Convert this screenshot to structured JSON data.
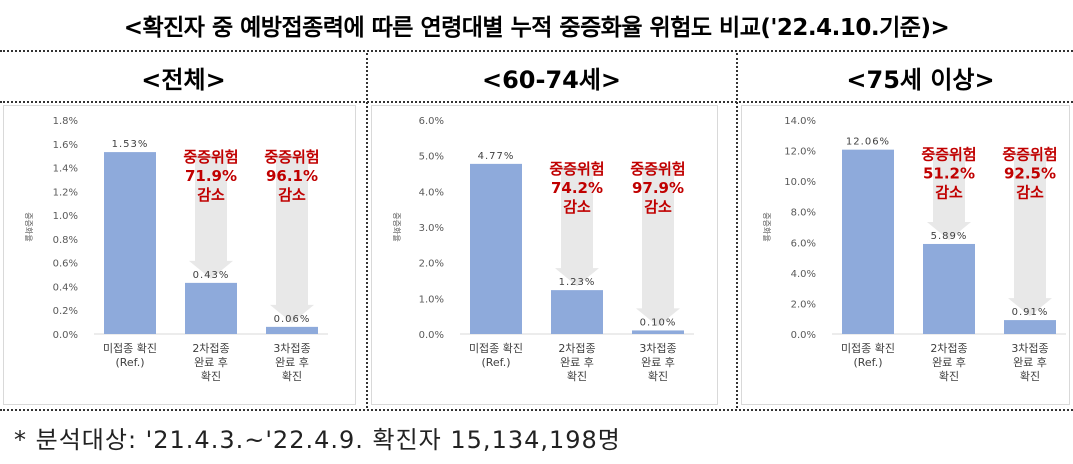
{
  "header": {
    "title": "<확진자 중 예방접종력에 따른 연령대별 누적 중증화율 위험도 비교('22.4.10.기준)>"
  },
  "footnote": "* 분석대상: '21.4.3.~'22.4.9. 확진자 15,134,198명",
  "colors": {
    "bar": "#8eaadb",
    "arrow": "#e8e8e8",
    "risk_text": "#c00000",
    "axis_text": "#595959"
  },
  "chart_data": [
    {
      "type": "bar",
      "title": "<전체>",
      "ylabel": "중증화율",
      "ylim": [
        0,
        1.8
      ],
      "yticks": [
        0,
        0.2,
        0.4,
        0.6,
        0.8,
        1.0,
        1.2,
        1.4,
        1.6,
        1.8
      ],
      "ytick_labels": [
        "0.0%",
        "0.2%",
        "0.4%",
        "0.6%",
        "0.8%",
        "1.0%",
        "1.2%",
        "1.4%",
        "1.6%",
        "1.8%"
      ],
      "categories": [
        [
          "미접종 확진",
          "(Ref.)"
        ],
        [
          "2차접종",
          "완료 후",
          "확진"
        ],
        [
          "3차접종",
          "완료 후",
          "확진"
        ]
      ],
      "values": [
        1.53,
        0.43,
        0.06
      ],
      "data_labels": [
        "1.53%",
        "0.43%",
        "0.06%"
      ],
      "annotations": [
        {
          "category_index": 1,
          "lines": [
            "중증위험",
            "71.9%",
            "감소"
          ]
        },
        {
          "category_index": 2,
          "lines": [
            "중증위험",
            "96.1%",
            "감소"
          ]
        }
      ]
    },
    {
      "type": "bar",
      "title": "<60-74세>",
      "ylabel": "중증화율",
      "ylim": [
        0,
        6.0
      ],
      "yticks": [
        0,
        1,
        2,
        3,
        4,
        5,
        6
      ],
      "ytick_labels": [
        "0.0%",
        "1.0%",
        "2.0%",
        "3.0%",
        "4.0%",
        "5.0%",
        "6.0%"
      ],
      "categories": [
        [
          "미접종 확진",
          "(Ref.)"
        ],
        [
          "2차접종",
          "완료 후",
          "확진"
        ],
        [
          "3차접종",
          "완료 후",
          "확진"
        ]
      ],
      "values": [
        4.77,
        1.23,
        0.1
      ],
      "data_labels": [
        "4.77%",
        "1.23%",
        "0.10%"
      ],
      "annotations": [
        {
          "category_index": 1,
          "lines": [
            "중증위험",
            "74.2%",
            "감소"
          ]
        },
        {
          "category_index": 2,
          "lines": [
            "중증위험",
            "97.9%",
            "감소"
          ]
        }
      ]
    },
    {
      "type": "bar",
      "title": "<75세 이상>",
      "ylabel": "중증화율",
      "ylim": [
        0,
        14.0
      ],
      "yticks": [
        0,
        2,
        4,
        6,
        8,
        10,
        12,
        14
      ],
      "ytick_labels": [
        "0.0%",
        "2.0%",
        "4.0%",
        "6.0%",
        "8.0%",
        "10.0%",
        "12.0%",
        "14.0%"
      ],
      "categories": [
        [
          "미접종 확진",
          "(Ref.)"
        ],
        [
          "2차접종",
          "완료 후",
          "확진"
        ],
        [
          "3차접종",
          "완료 후",
          "확진"
        ]
      ],
      "values": [
        12.06,
        5.89,
        0.91
      ],
      "data_labels": [
        "12.06%",
        "5.89%",
        "0.91%"
      ],
      "annotations": [
        {
          "category_index": 1,
          "lines": [
            "중증위험",
            "51.2%",
            "감소"
          ]
        },
        {
          "category_index": 2,
          "lines": [
            "중증위험",
            "92.5%",
            "감소"
          ]
        }
      ]
    }
  ]
}
